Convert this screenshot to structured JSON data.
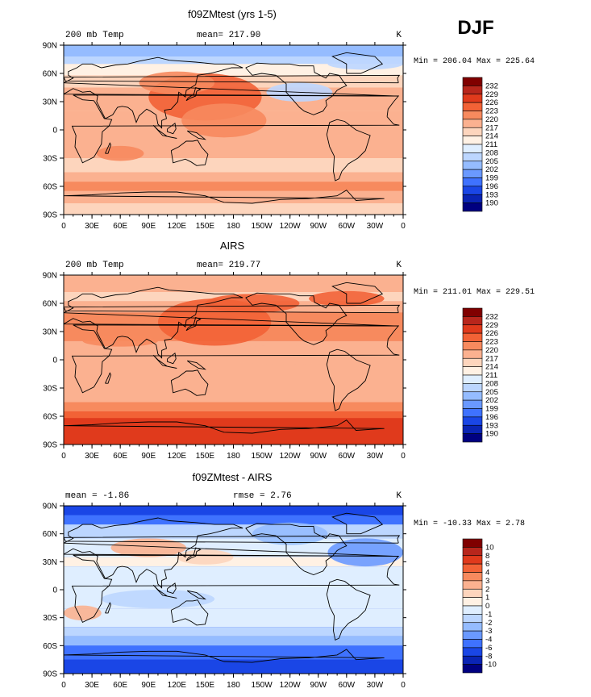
{
  "season": "DJF",
  "chart_data": [
    {
      "type": "heatmap",
      "title": "f09ZMtest (yrs 1-5)",
      "left_label": "200 mb Temp",
      "center_label": "mean= 217.90",
      "units": "K",
      "stats": "Min = 206.04 Max = 225.64",
      "x_ticks": [
        "0",
        "30E",
        "60E",
        "90E",
        "120E",
        "150E",
        "180",
        "150W",
        "120W",
        "90W",
        "60W",
        "30W",
        "0"
      ],
      "y_ticks": [
        "90N",
        "60N",
        "30N",
        "0",
        "30S",
        "60S",
        "90S"
      ],
      "colorbar": {
        "labels": [
          "232",
          "229",
          "226",
          "223",
          "220",
          "217",
          "214",
          "211",
          "208",
          "205",
          "202",
          "199",
          "196",
          "193",
          "190"
        ],
        "colors": [
          "#800000",
          "#b8261c",
          "#e03a1c",
          "#f26236",
          "#f78a5e",
          "#fbb190",
          "#fdd5bd",
          "#fff1e4",
          "#dfeeff",
          "#bcd6ff",
          "#95bcff",
          "#6a99ff",
          "#3f72ff",
          "#1a46e6",
          "#0a24b4",
          "#000080"
        ]
      }
    },
    {
      "type": "heatmap",
      "title": "AIRS",
      "left_label": "200 mb Temp",
      "center_label": "mean= 219.77",
      "units": "K",
      "stats": "Min = 211.01 Max = 229.51",
      "x_ticks": [
        "0",
        "30E",
        "60E",
        "90E",
        "120E",
        "150E",
        "180",
        "150W",
        "120W",
        "90W",
        "60W",
        "30W",
        "0"
      ],
      "y_ticks": [
        "90N",
        "60N",
        "30N",
        "0",
        "30S",
        "60S",
        "90S"
      ],
      "colorbar": {
        "labels": [
          "232",
          "229",
          "226",
          "223",
          "220",
          "217",
          "214",
          "211",
          "208",
          "205",
          "202",
          "199",
          "196",
          "193",
          "190"
        ],
        "colors": [
          "#800000",
          "#b8261c",
          "#e03a1c",
          "#f26236",
          "#f78a5e",
          "#fbb190",
          "#fdd5bd",
          "#fff1e4",
          "#dfeeff",
          "#bcd6ff",
          "#95bcff",
          "#6a99ff",
          "#3f72ff",
          "#1a46e6",
          "#0a24b4",
          "#000080"
        ]
      }
    },
    {
      "type": "heatmap",
      "title": "f09ZMtest - AIRS",
      "left_label": "mean = -1.86",
      "center_label": "rmse = 2.76",
      "units": "K",
      "stats": "Min = -10.33 Max = 2.78",
      "x_ticks": [
        "0",
        "30E",
        "60E",
        "90E",
        "120E",
        "150E",
        "180",
        "150W",
        "120W",
        "90W",
        "60W",
        "30W",
        "0"
      ],
      "y_ticks": [
        "90N",
        "60N",
        "30N",
        "0",
        "30S",
        "60S",
        "90S"
      ],
      "colorbar": {
        "labels": [
          "10",
          "8",
          "6",
          "4",
          "3",
          "2",
          "1",
          "0",
          "-1",
          "-2",
          "-3",
          "-4",
          "-6",
          "-8",
          "-10"
        ],
        "colors": [
          "#800000",
          "#b8261c",
          "#e03a1c",
          "#f26236",
          "#f78a5e",
          "#fbb190",
          "#fdd5bd",
          "#fff1e4",
          "#dfeeff",
          "#bcd6ff",
          "#95bcff",
          "#6a99ff",
          "#3f72ff",
          "#1a46e6",
          "#0a24b4",
          "#000080"
        ]
      }
    }
  ]
}
